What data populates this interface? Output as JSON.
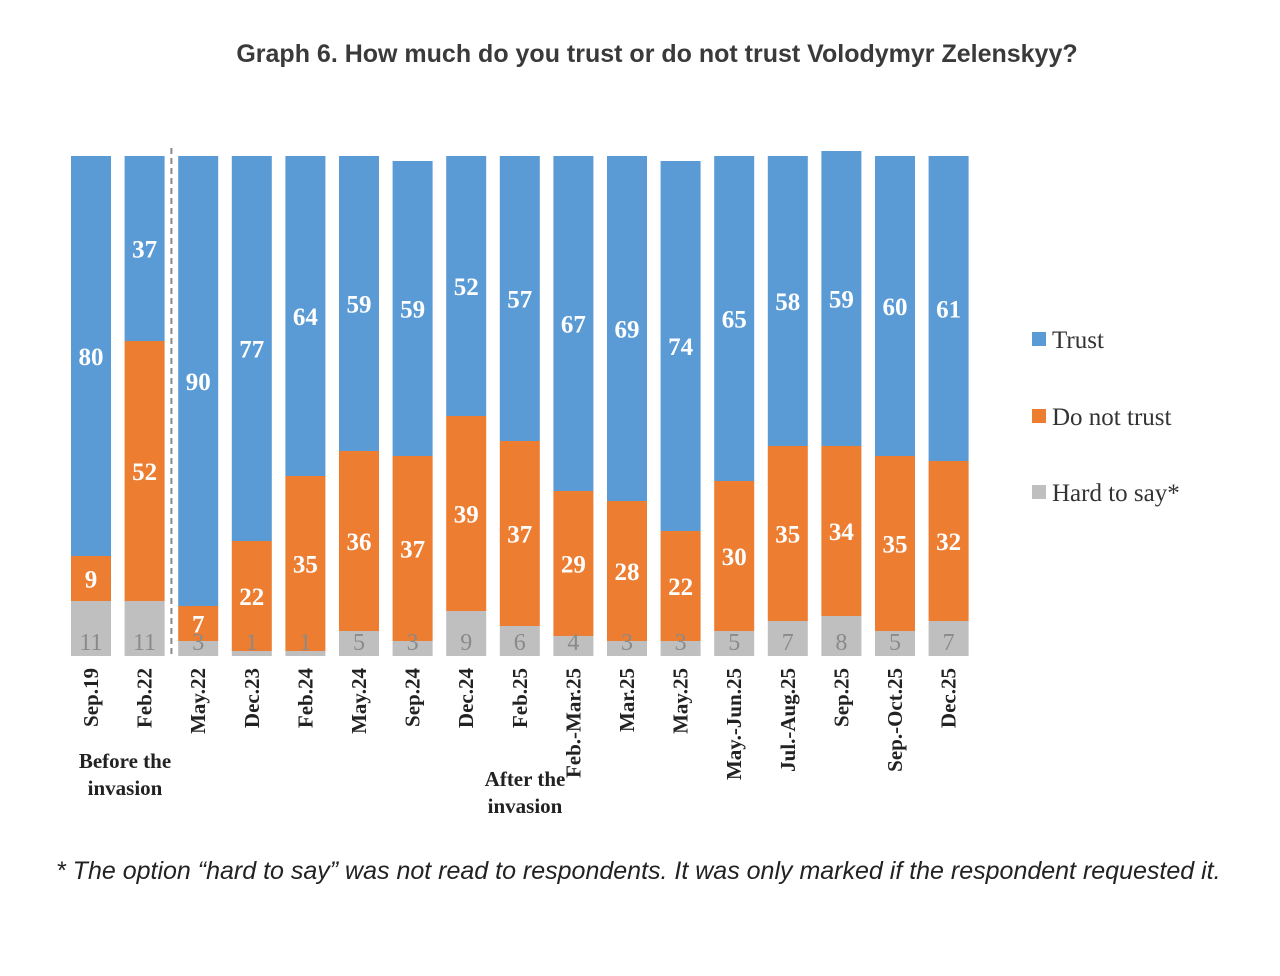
{
  "title": "Graph 6. How much do you trust or do not trust Volodymyr Zelenskyy?",
  "footnote": "* The option “hard to say” was not read to respondents. It was only marked if the respondent requested it.",
  "colors": {
    "trust": "#5B9BD5",
    "do_not_trust": "#ED7D31",
    "hard_to_say": "#BFBFBF",
    "divider": "#888888"
  },
  "chart_data": {
    "type": "bar",
    "stacked": true,
    "categories": [
      "Sep.19",
      "Feb.22",
      "May.22",
      "Dec.23",
      "Feb.24",
      "May.24",
      "Sep.24",
      "Dec.24",
      "Feb.25",
      "Feb.-Mar.25",
      "Mar.25",
      "May.25",
      "May.-Jun.25",
      "Jul.-Aug.25",
      "Sep.25",
      "Sep.-Oct.25",
      "Dec.25"
    ],
    "series": [
      {
        "name": "Hard to say*",
        "values": [
          11,
          11,
          3,
          1,
          1,
          5,
          3,
          9,
          6,
          4,
          3,
          3,
          5,
          7,
          8,
          5,
          7
        ]
      },
      {
        "name": "Do not trust",
        "values": [
          9,
          52,
          7,
          22,
          35,
          36,
          37,
          39,
          37,
          29,
          28,
          22,
          30,
          35,
          34,
          35,
          32
        ]
      },
      {
        "name": "Trust",
        "values": [
          80,
          37,
          90,
          77,
          64,
          59,
          59,
          52,
          57,
          67,
          69,
          74,
          65,
          58,
          59,
          60,
          61
        ]
      }
    ],
    "ylim": [
      0,
      100
    ],
    "groups": [
      {
        "label_lines": [
          "Before the",
          "invasion"
        ],
        "range": [
          0,
          1
        ]
      },
      {
        "label_lines": [
          "After the",
          "invasion"
        ],
        "range": [
          2,
          16
        ]
      }
    ],
    "legend": [
      "Trust",
      "Do not trust",
      "Hard to say*"
    ],
    "legend_position": "right"
  }
}
